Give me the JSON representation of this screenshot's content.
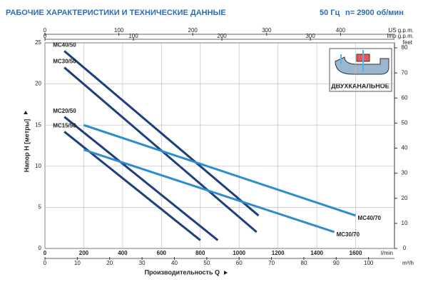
{
  "chart_data": {
    "type": "line",
    "title": "РАБОЧИЕ ХАРАКТЕРИСТИКИ И ТЕХНИЧЕСКИЕ ДАННЫЕ",
    "frequency": "50 Гц",
    "speed": "n= 2900 об/мин",
    "x_label": "Производительность Q",
    "y_label": "Напор H [метры]",
    "x_unit": "l/min",
    "y2_unit": "feet",
    "inset_label": "ДВУХКАНАЛЬНОЕ",
    "xlim": [
      0,
      1800
    ],
    "xticks": [
      0,
      200,
      400,
      600,
      800,
      1000,
      1200,
      1400,
      1600
    ],
    "ylim": [
      0,
      25
    ],
    "yticks": [
      0,
      5,
      10,
      15,
      20,
      25
    ],
    "y2lim": [
      0,
      82
    ],
    "y2ticks": [
      0,
      10,
      20,
      30,
      40,
      50,
      60,
      70,
      80
    ],
    "grid": true,
    "extra_x_axes": [
      {
        "unit": "US g.p.m.",
        "lim": [
          0,
          473
        ],
        "ticks": [
          0,
          100,
          200,
          300,
          400
        ],
        "side": "top"
      },
      {
        "unit": "Imp g.p.m.",
        "lim": [
          0,
          395
        ],
        "ticks": [
          0,
          100,
          200,
          300
        ],
        "side": "top"
      },
      {
        "unit": "m³/h",
        "lim": [
          0,
          108
        ],
        "ticks": [
          0,
          10,
          20,
          30,
          40,
          50,
          60,
          70,
          80,
          90,
          100
        ],
        "side": "bottom"
      }
    ],
    "series": [
      {
        "name": "MC40/50",
        "color": "#1d3f7e",
        "x": [
          100,
          1100
        ],
        "values": [
          24,
          4
        ]
      },
      {
        "name": "MC30/50",
        "color": "#1d3f7e",
        "x": [
          100,
          1090
        ],
        "values": [
          22,
          2
        ]
      },
      {
        "name": "MC20/50",
        "color": "#1d3f7e",
        "x": [
          100,
          890
        ],
        "values": [
          16,
          1
        ]
      },
      {
        "name": "MC15/50",
        "color": "#1d3f7e",
        "x": [
          100,
          800
        ],
        "values": [
          14.2,
          1
        ]
      },
      {
        "name": "MC40/70",
        "color": "#2f8ccb",
        "x": [
          200,
          1600
        ],
        "values": [
          15,
          4
        ]
      },
      {
        "name": "MC30/70",
        "color": "#2f8ccb",
        "x": [
          200,
          1490
        ],
        "values": [
          12,
          2
        ]
      }
    ]
  }
}
